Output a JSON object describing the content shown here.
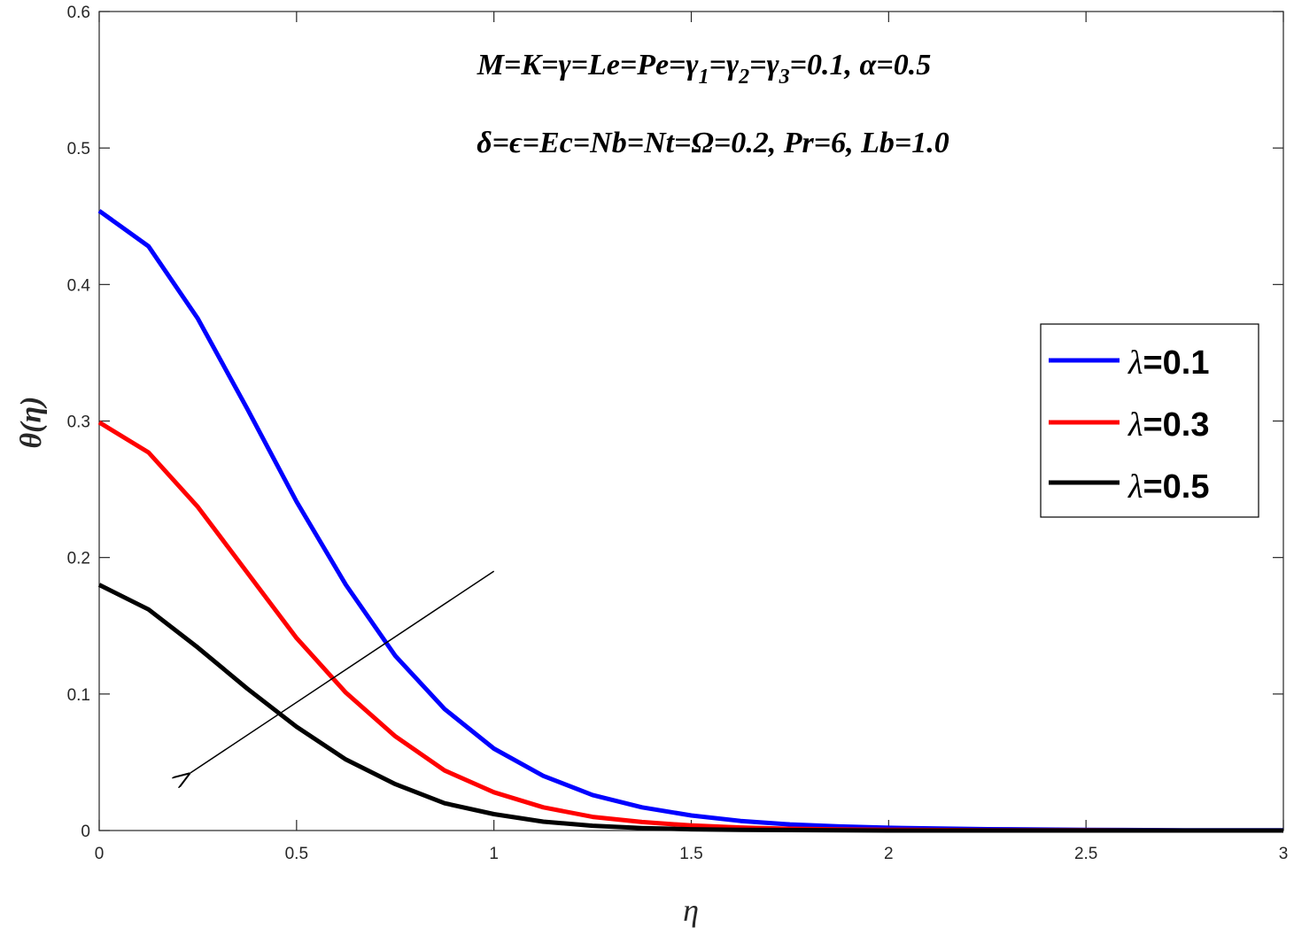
{
  "chart_data": {
    "type": "line",
    "xlabel": "η",
    "ylabel": "θ(η)",
    "xlim": [
      0,
      3
    ],
    "ylim": [
      0,
      0.6
    ],
    "x_ticks": [
      "0",
      "0.5",
      "1",
      "1.5",
      "2",
      "2.5",
      "3"
    ],
    "y_ticks": [
      "0",
      "0.1",
      "0.2",
      "0.3",
      "0.4",
      "0.5",
      "0.6"
    ],
    "grid": false,
    "legend_position": "right",
    "annotations": [
      "M=K=γ=Le=Pe=γ1=γ2=γ3=0.1, α=0.5",
      "δ=ϵ=Ec=Nb=Nt=Ω=0.2, Pr=6, Lb=1.0"
    ],
    "arrow": {
      "from": [
        1.0,
        0.19
      ],
      "to": [
        0.23,
        0.042
      ]
    },
    "x": [
      0,
      0.125,
      0.25,
      0.375,
      0.5,
      0.625,
      0.75,
      0.875,
      1.0,
      1.125,
      1.25,
      1.375,
      1.5,
      1.625,
      1.75,
      1.875,
      2.0,
      2.25,
      2.5,
      2.75,
      3.0
    ],
    "series": [
      {
        "name": "λ=0.1",
        "color": "#0000ff",
        "values": [
          0.454,
          0.428,
          0.375,
          0.309,
          0.241,
          0.18,
          0.128,
          0.089,
          0.06,
          0.04,
          0.026,
          0.017,
          0.011,
          0.007,
          0.0045,
          0.003,
          0.002,
          0.001,
          0.0005,
          0.0002,
          0.0001
        ]
      },
      {
        "name": "λ=0.3",
        "color": "#ff0000",
        "values": [
          0.299,
          0.277,
          0.237,
          0.189,
          0.141,
          0.101,
          0.069,
          0.044,
          0.028,
          0.017,
          0.01,
          0.0062,
          0.0037,
          0.0022,
          0.0013,
          0.0008,
          0.0005,
          0.0002,
          0.0001,
          0.0,
          0.0
        ]
      },
      {
        "name": "λ=0.5",
        "color": "#000000",
        "values": [
          0.18,
          0.162,
          0.134,
          0.104,
          0.076,
          0.052,
          0.034,
          0.02,
          0.012,
          0.0065,
          0.0035,
          0.0018,
          0.0009,
          0.0005,
          0.0003,
          0.0001,
          0.0,
          0.0,
          0.0,
          0.0,
          0.0
        ]
      }
    ]
  }
}
